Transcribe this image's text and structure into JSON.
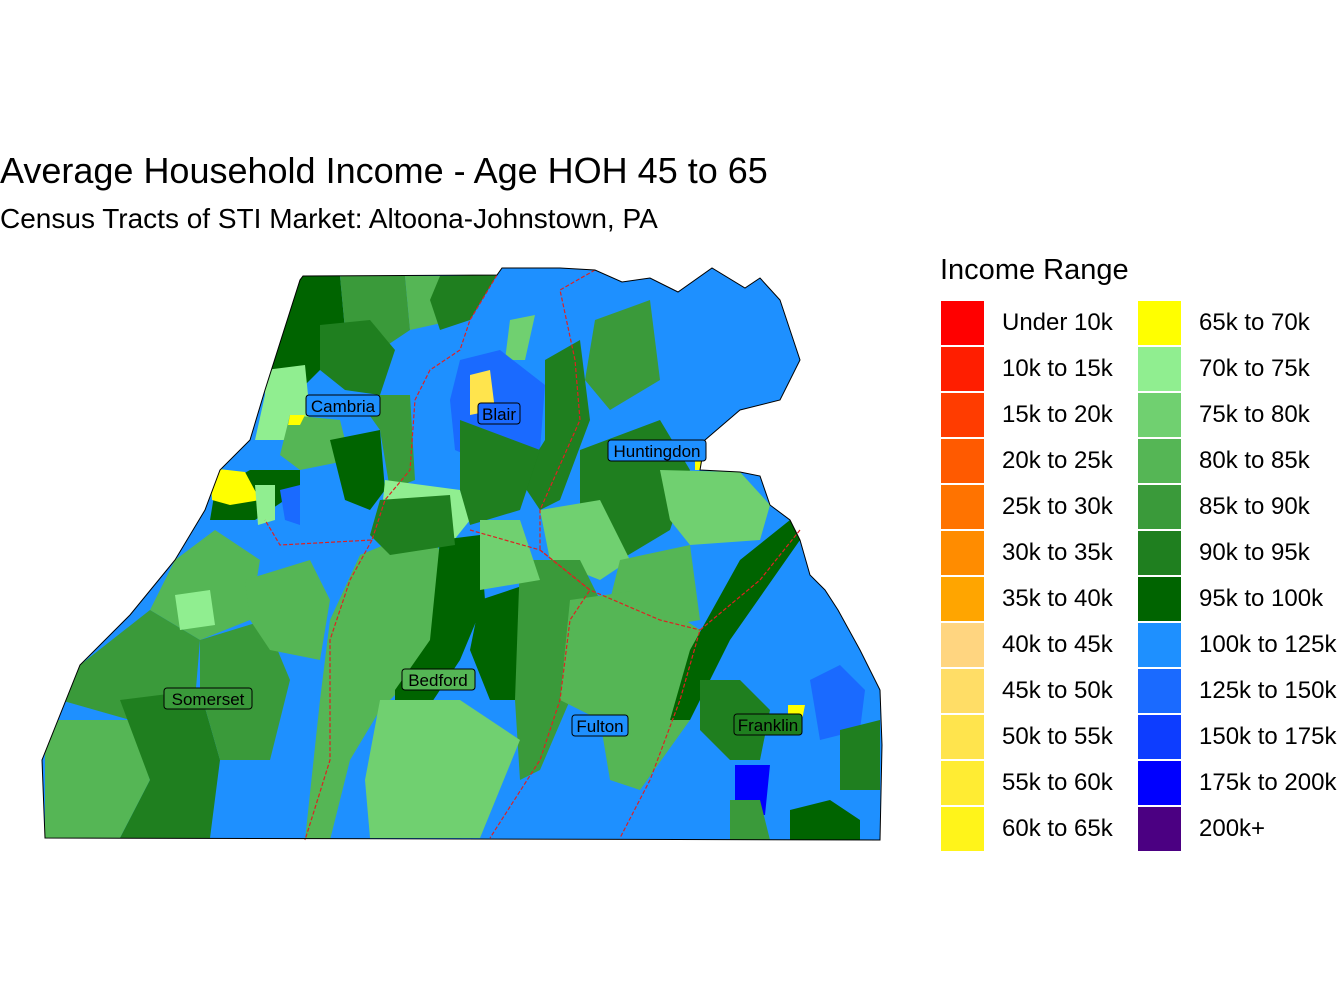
{
  "title": "Average Household Income - Age HOH 45 to 65",
  "subtitle": "Census Tracts of STI Market: Altoona-Johnstown, PA",
  "legend": {
    "title": "Income Range",
    "items": [
      {
        "label": "Under 10k",
        "color": "#FF0000"
      },
      {
        "label": "10k to 15k",
        "color": "#FF1E00"
      },
      {
        "label": "15k to 20k",
        "color": "#FF3C00"
      },
      {
        "label": "20k to 25k",
        "color": "#FF5A00"
      },
      {
        "label": "25k to 30k",
        "color": "#FF7300"
      },
      {
        "label": "30k to 35k",
        "color": "#FF8C00"
      },
      {
        "label": "35k to 40k",
        "color": "#FFA500"
      },
      {
        "label": "40k to 45k",
        "color": "#FFD580"
      },
      {
        "label": "45k to 50k",
        "color": "#FFDD66"
      },
      {
        "label": "50k to 55k",
        "color": "#FFE44D"
      },
      {
        "label": "55k to 60k",
        "color": "#FFEC33"
      },
      {
        "label": "60k to 65k",
        "color": "#FFF41A"
      },
      {
        "label": "65k to 70k",
        "color": "#FFFF00"
      },
      {
        "label": "70k to 75k",
        "color": "#90EE90"
      },
      {
        "label": "75k to 80k",
        "color": "#70D070"
      },
      {
        "label": "80k to 85k",
        "color": "#55B655"
      },
      {
        "label": "85k to 90k",
        "color": "#3A9A3A"
      },
      {
        "label": "90k to 95k",
        "color": "#1F7F1F"
      },
      {
        "label": "95k to 100k",
        "color": "#006400"
      },
      {
        "label": "100k to 125k",
        "color": "#1E90FF"
      },
      {
        "label": "125k to 150k",
        "color": "#1A6AFF"
      },
      {
        "label": "150k to 175k",
        "color": "#0D3DFF"
      },
      {
        "label": "175k to 200k",
        "color": "#0000FF"
      },
      {
        "label": "200k+",
        "color": "#4B0082"
      }
    ]
  },
  "counties": [
    {
      "name": "Cambria"
    },
    {
      "name": "Blair"
    },
    {
      "name": "Huntingdon"
    },
    {
      "name": "Bedford"
    },
    {
      "name": "Somerset"
    },
    {
      "name": "Fulton"
    },
    {
      "name": "Franklin"
    }
  ],
  "boundary_color": "#DD2222"
}
